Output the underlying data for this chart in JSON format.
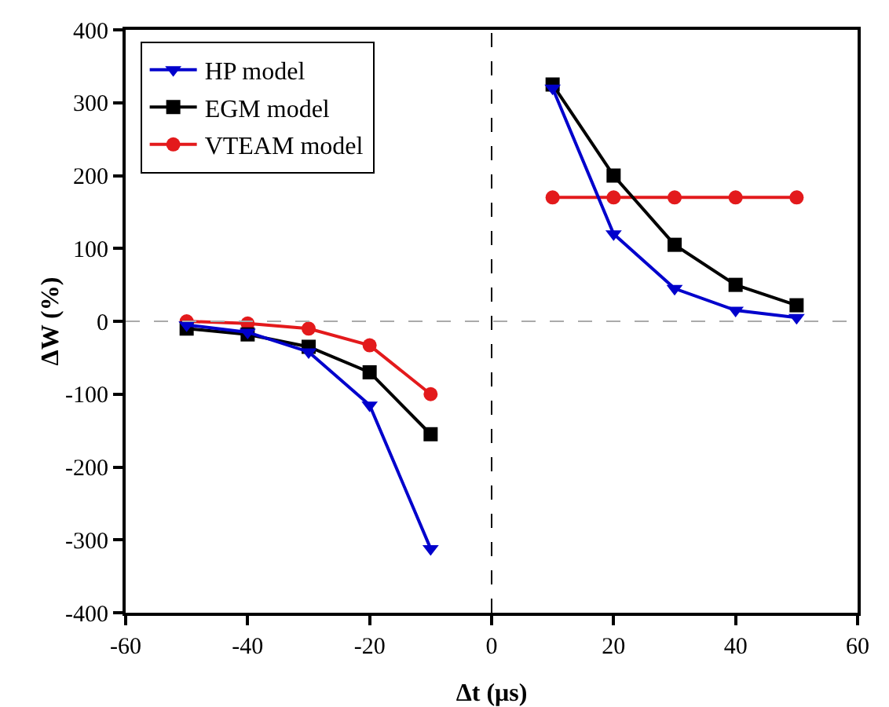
{
  "chart_data": {
    "type": "line",
    "xlabel": "Δt (μs)",
    "ylabel": "ΔW (%)",
    "x": [
      -50,
      -40,
      -30,
      -20,
      -10,
      10,
      20,
      30,
      40,
      50
    ],
    "series": [
      {
        "name": "HP model",
        "color": "#0000cc",
        "marker": "triangle",
        "values": [
          -5,
          -15,
          -42,
          -115,
          -312,
          320,
          120,
          45,
          15,
          5
        ]
      },
      {
        "name": "EGM model",
        "color": "#000000",
        "marker": "square",
        "values": [
          -10,
          -18,
          -35,
          -70,
          -155,
          325,
          200,
          105,
          50,
          22
        ]
      },
      {
        "name": "VTEAM model",
        "color": "#e31a1c",
        "marker": "circle",
        "values": [
          0,
          -3,
          -10,
          -33,
          -100,
          170,
          170,
          170,
          170,
          170
        ]
      }
    ],
    "xlim": [
      -60,
      60
    ],
    "xticks": [
      -60,
      -40,
      -20,
      0,
      20,
      40,
      60
    ],
    "ylim": [
      -400,
      400
    ],
    "yticks": [
      -400,
      -300,
      -200,
      -100,
      0,
      100,
      200,
      300,
      400
    ],
    "ref_lines": [
      {
        "axis": "x",
        "value": 0,
        "color": "#000000",
        "line_style": "dashed"
      },
      {
        "axis": "y",
        "value": 0,
        "color": "#aaaaaa",
        "line_style": "dashed"
      }
    ],
    "grid": false,
    "legend": "top left",
    "line_style": "solid"
  }
}
